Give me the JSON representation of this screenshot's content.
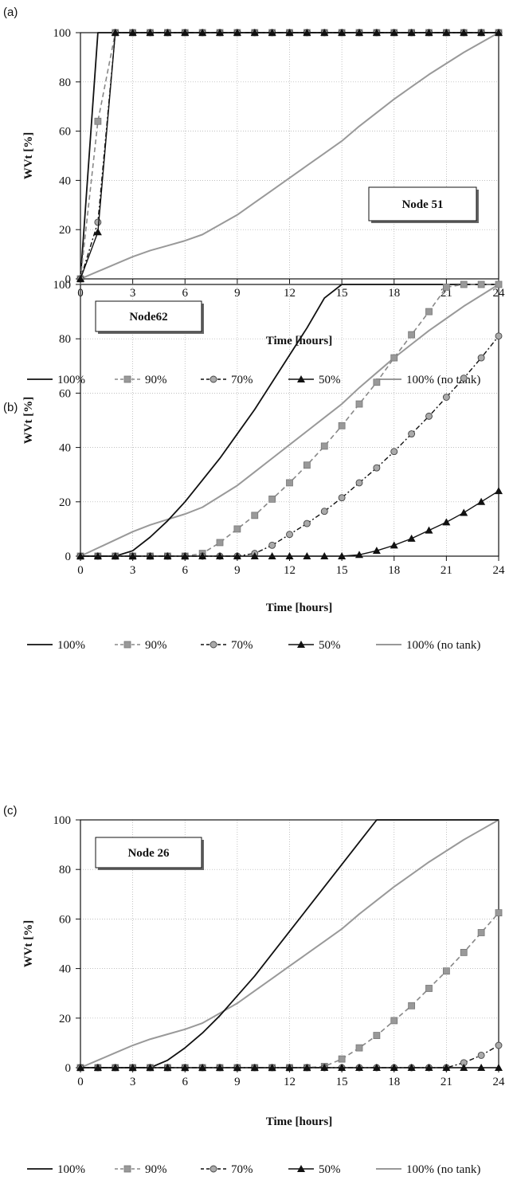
{
  "chart_data": [
    {
      "type": "line",
      "panel": "(a)",
      "annotation": "Node 51",
      "xlabel": "Time [hours]",
      "ylabel": "WVt [%]",
      "xlim": [
        0,
        24
      ],
      "ylim": [
        0,
        100
      ],
      "xticks": [
        0,
        3,
        6,
        9,
        12,
        15,
        18,
        21,
        24
      ],
      "yticks": [
        0,
        20,
        40,
        60,
        80,
        100
      ],
      "grid": true,
      "legend_position": "bottom",
      "series": [
        {
          "name": "100%",
          "style": "solid-black",
          "x": [
            0,
            1,
            2,
            24
          ],
          "y": [
            0,
            100,
            100,
            100
          ]
        },
        {
          "name": "90%",
          "style": "dashed-square",
          "x": [
            0,
            1,
            2,
            3,
            4,
            5,
            6,
            7,
            8,
            9,
            10,
            11,
            12,
            13,
            14,
            15,
            16,
            17,
            18,
            19,
            20,
            21,
            22,
            23,
            24
          ],
          "y": [
            0,
            64,
            100,
            100,
            100,
            100,
            100,
            100,
            100,
            100,
            100,
            100,
            100,
            100,
            100,
            100,
            100,
            100,
            100,
            100,
            100,
            100,
            100,
            100,
            100
          ]
        },
        {
          "name": "70%",
          "style": "dashdot-circle",
          "x": [
            0,
            1,
            2,
            3,
            4,
            5,
            6,
            7,
            8,
            9,
            10,
            11,
            12,
            13,
            14,
            15,
            16,
            17,
            18,
            19,
            20,
            21,
            22,
            23,
            24
          ],
          "y": [
            0,
            23,
            100,
            100,
            100,
            100,
            100,
            100,
            100,
            100,
            100,
            100,
            100,
            100,
            100,
            100,
            100,
            100,
            100,
            100,
            100,
            100,
            100,
            100,
            100
          ]
        },
        {
          "name": "50%",
          "style": "solid-triangle",
          "x": [
            0,
            1,
            2,
            3,
            4,
            5,
            6,
            7,
            8,
            9,
            10,
            11,
            12,
            13,
            14,
            15,
            16,
            17,
            18,
            19,
            20,
            21,
            22,
            23,
            24
          ],
          "y": [
            0,
            19,
            100,
            100,
            100,
            100,
            100,
            100,
            100,
            100,
            100,
            100,
            100,
            100,
            100,
            100,
            100,
            100,
            100,
            100,
            100,
            100,
            100,
            100,
            100
          ]
        },
        {
          "name": "100% (no tank)",
          "style": "solid-gray",
          "x": [
            0,
            1,
            2,
            3,
            4,
            5,
            6,
            7,
            8,
            9,
            10,
            11,
            12,
            13,
            14,
            15,
            16,
            17,
            18,
            19,
            20,
            21,
            22,
            23,
            24
          ],
          "y": [
            0,
            3,
            6,
            9,
            11.5,
            13.5,
            15.5,
            18,
            22,
            26,
            31,
            36,
            41,
            46,
            51,
            56,
            62,
            67.5,
            73,
            78,
            83,
            87.5,
            92,
            96,
            100
          ]
        }
      ]
    },
    {
      "type": "line",
      "panel": "(b)",
      "annotation": "Node62",
      "xlabel": "Time [hours]",
      "ylabel": "WVt [%]",
      "xlim": [
        0,
        24
      ],
      "ylim": [
        0,
        100
      ],
      "xticks": [
        0,
        3,
        6,
        9,
        12,
        15,
        18,
        21,
        24
      ],
      "yticks": [
        0,
        20,
        40,
        60,
        80,
        100
      ],
      "grid": true,
      "legend_position": "bottom",
      "series": [
        {
          "name": "100%",
          "style": "solid-black",
          "x": [
            0,
            1,
            2,
            3,
            4,
            5,
            6,
            7,
            8,
            9,
            10,
            11,
            12,
            13,
            14,
            15,
            16,
            17,
            18,
            19,
            20,
            21,
            22,
            23,
            24
          ],
          "y": [
            0,
            0,
            0,
            2,
            7,
            13,
            20,
            28,
            36,
            45,
            54,
            64,
            74,
            84,
            95,
            100,
            100,
            100,
            100,
            100,
            100,
            100,
            100,
            100,
            100
          ]
        },
        {
          "name": "90%",
          "style": "dashed-square",
          "x": [
            0,
            1,
            2,
            3,
            4,
            5,
            6,
            7,
            8,
            9,
            10,
            11,
            12,
            13,
            14,
            15,
            16,
            17,
            18,
            19,
            20,
            21,
            22,
            23,
            24
          ],
          "y": [
            0,
            0,
            0,
            0,
            0,
            0,
            0,
            1,
            5,
            10,
            15,
            21,
            27,
            33.5,
            40.5,
            48,
            56,
            64,
            73,
            81.5,
            90,
            99,
            100,
            100,
            100
          ]
        },
        {
          "name": "70%",
          "style": "dashdot-circle",
          "x": [
            0,
            1,
            2,
            3,
            4,
            5,
            6,
            7,
            8,
            9,
            10,
            11,
            12,
            13,
            14,
            15,
            16,
            17,
            18,
            19,
            20,
            21,
            22,
            23,
            24
          ],
          "y": [
            0,
            0,
            0,
            0,
            0,
            0,
            0,
            0,
            0,
            0,
            1,
            4,
            8,
            12,
            16.5,
            21.5,
            27,
            32.5,
            38.5,
            45,
            51.5,
            58.5,
            65.5,
            73,
            81
          ]
        },
        {
          "name": "50%",
          "style": "solid-triangle",
          "x": [
            0,
            1,
            2,
            3,
            4,
            5,
            6,
            7,
            8,
            9,
            10,
            11,
            12,
            13,
            14,
            15,
            16,
            17,
            18,
            19,
            20,
            21,
            22,
            23,
            24
          ],
          "y": [
            0,
            0,
            0,
            0,
            0,
            0,
            0,
            0,
            0,
            0,
            0,
            0,
            0,
            0,
            0,
            0,
            0.5,
            2,
            4,
            6.5,
            9.5,
            12.5,
            16,
            20,
            24
          ]
        },
        {
          "name": "100% (no tank)",
          "style": "solid-gray",
          "x": [
            0,
            1,
            2,
            3,
            4,
            5,
            6,
            7,
            8,
            9,
            10,
            11,
            12,
            13,
            14,
            15,
            16,
            17,
            18,
            19,
            20,
            21,
            22,
            23,
            24
          ],
          "y": [
            0,
            3,
            6,
            9,
            11.5,
            13.5,
            15.5,
            18,
            22,
            26,
            31,
            36,
            41,
            46,
            51,
            56,
            62,
            67.5,
            73,
            78,
            83,
            87.5,
            92,
            96,
            100
          ]
        }
      ]
    },
    {
      "type": "line",
      "panel": "(c)",
      "annotation": "Node 26",
      "xlabel": "Time [hours]",
      "ylabel": "WVt [%]",
      "xlim": [
        0,
        24
      ],
      "ylim": [
        0,
        100
      ],
      "xticks": [
        0,
        3,
        6,
        9,
        12,
        15,
        18,
        21,
        24
      ],
      "yticks": [
        0,
        20,
        40,
        60,
        80,
        100
      ],
      "grid": true,
      "legend_position": "bottom",
      "series": [
        {
          "name": "100%",
          "style": "solid-black",
          "x": [
            0,
            1,
            2,
            3,
            4,
            5,
            6,
            7,
            8,
            9,
            10,
            11,
            12,
            13,
            14,
            15,
            16,
            17,
            18,
            19,
            20,
            21,
            22,
            23,
            24
          ],
          "y": [
            0,
            0,
            0,
            0,
            0,
            3,
            8,
            14,
            21,
            29,
            37,
            46,
            55,
            64,
            73,
            82,
            91,
            100,
            100,
            100,
            100,
            100,
            100,
            100,
            100
          ]
        },
        {
          "name": "90%",
          "style": "dashed-square",
          "x": [
            0,
            1,
            2,
            3,
            4,
            5,
            6,
            7,
            8,
            9,
            10,
            11,
            12,
            13,
            14,
            15,
            16,
            17,
            18,
            19,
            20,
            21,
            22,
            23,
            24
          ],
          "y": [
            0,
            0,
            0,
            0,
            0,
            0,
            0,
            0,
            0,
            0,
            0,
            0,
            0,
            0,
            0.5,
            3.5,
            8,
            13,
            19,
            25,
            32,
            39,
            46.5,
            54.5,
            62.5
          ]
        },
        {
          "name": "70%",
          "style": "dashdot-circle",
          "x": [
            0,
            1,
            2,
            3,
            4,
            5,
            6,
            7,
            8,
            9,
            10,
            11,
            12,
            13,
            14,
            15,
            16,
            17,
            18,
            19,
            20,
            21,
            22,
            23,
            24
          ],
          "y": [
            0,
            0,
            0,
            0,
            0,
            0,
            0,
            0,
            0,
            0,
            0,
            0,
            0,
            0,
            0,
            0,
            0,
            0,
            0,
            0,
            0,
            0,
            2,
            5,
            9
          ]
        },
        {
          "name": "50%",
          "style": "solid-triangle",
          "x": [
            0,
            1,
            2,
            3,
            4,
            5,
            6,
            7,
            8,
            9,
            10,
            11,
            12,
            13,
            14,
            15,
            16,
            17,
            18,
            19,
            20,
            21,
            22,
            23,
            24
          ],
          "y": [
            0,
            0,
            0,
            0,
            0,
            0,
            0,
            0,
            0,
            0,
            0,
            0,
            0,
            0,
            0,
            0,
            0,
            0,
            0,
            0,
            0,
            0,
            0,
            0,
            0
          ]
        },
        {
          "name": "100% (no tank)",
          "style": "solid-gray",
          "x": [
            0,
            1,
            2,
            3,
            4,
            5,
            6,
            7,
            8,
            9,
            10,
            11,
            12,
            13,
            14,
            15,
            16,
            17,
            18,
            19,
            20,
            21,
            22,
            23,
            24
          ],
          "y": [
            0,
            3,
            6,
            9,
            11.5,
            13.5,
            15.5,
            18,
            22,
            26,
            31,
            36,
            41,
            46,
            51,
            56,
            62,
            67.5,
            73,
            78,
            83,
            87.5,
            92,
            96,
            100
          ]
        }
      ]
    }
  ]
}
